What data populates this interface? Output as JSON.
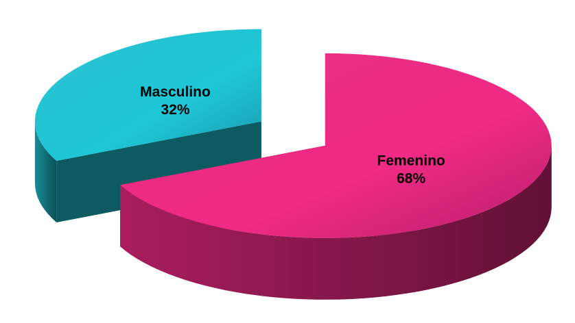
{
  "chart_data": {
    "type": "pie3d",
    "categories": [
      "Femenino",
      "Masculino"
    ],
    "values": [
      68,
      32
    ],
    "value_labels": [
      "68%",
      "32%"
    ],
    "colors": [
      "#f22a86",
      "#1fc8d8"
    ]
  }
}
